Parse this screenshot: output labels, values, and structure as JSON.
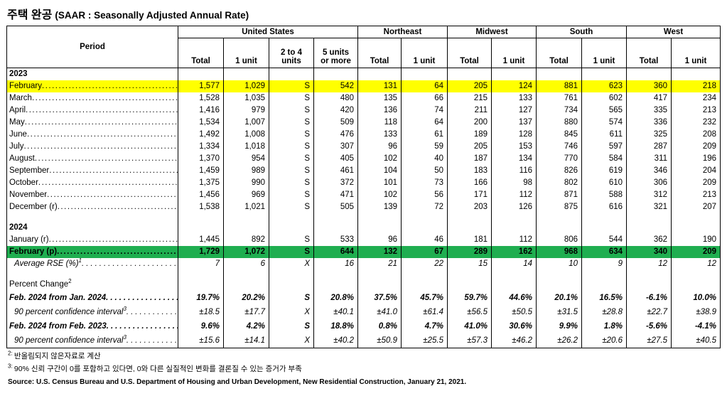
{
  "title": {
    "korean": "주택 완공",
    "english": "(SAAR : Seasonally Adjusted Annual Rate)"
  },
  "table": {
    "period_header": "Period",
    "groups": [
      {
        "label": "United States",
        "sub": [
          "Total",
          "1 unit",
          "2 to 4\nunits",
          "5 units\nor more"
        ]
      },
      {
        "label": "Northeast",
        "sub": [
          "Total",
          "1 unit"
        ]
      },
      {
        "label": "Midwest",
        "sub": [
          "Total",
          "1 unit"
        ]
      },
      {
        "label": "South",
        "sub": [
          "Total",
          "1 unit"
        ]
      },
      {
        "label": "West",
        "sub": [
          "Total",
          "1 unit"
        ]
      }
    ],
    "highlight_colors": {
      "yellow": "#FFFF00",
      "green": "#1FAE50"
    },
    "rows": [
      {
        "type": "year",
        "label": "2023"
      },
      {
        "type": "data",
        "label": "February",
        "dots": true,
        "highlight": "yellow",
        "values": [
          "1,577",
          "1,029",
          "S",
          "542",
          "131",
          "64",
          "205",
          "124",
          "881",
          "623",
          "360",
          "218"
        ]
      },
      {
        "type": "data",
        "label": "March",
        "dots": true,
        "values": [
          "1,528",
          "1,035",
          "S",
          "480",
          "135",
          "66",
          "215",
          "133",
          "761",
          "602",
          "417",
          "234"
        ]
      },
      {
        "type": "data",
        "label": "April",
        "dots": true,
        "values": [
          "1,416",
          "979",
          "S",
          "420",
          "136",
          "74",
          "211",
          "127",
          "734",
          "565",
          "335",
          "213"
        ]
      },
      {
        "type": "data",
        "label": "May",
        "dots": true,
        "values": [
          "1,534",
          "1,007",
          "S",
          "509",
          "118",
          "64",
          "200",
          "137",
          "880",
          "574",
          "336",
          "232"
        ]
      },
      {
        "type": "data",
        "label": "June",
        "dots": true,
        "values": [
          "1,492",
          "1,008",
          "S",
          "476",
          "133",
          "61",
          "189",
          "128",
          "845",
          "611",
          "325",
          "208"
        ]
      },
      {
        "type": "data",
        "label": "July",
        "dots": true,
        "values": [
          "1,334",
          "1,018",
          "S",
          "307",
          "96",
          "59",
          "205",
          "153",
          "746",
          "597",
          "287",
          "209"
        ]
      },
      {
        "type": "data",
        "label": "August",
        "dots": true,
        "values": [
          "1,370",
          "954",
          "S",
          "405",
          "102",
          "40",
          "187",
          "134",
          "770",
          "584",
          "311",
          "196"
        ]
      },
      {
        "type": "data",
        "label": "September",
        "dots": true,
        "values": [
          "1,459",
          "989",
          "S",
          "461",
          "104",
          "50",
          "183",
          "116",
          "826",
          "619",
          "346",
          "204"
        ]
      },
      {
        "type": "data",
        "label": "October",
        "dots": true,
        "values": [
          "1,375",
          "990",
          "S",
          "372",
          "101",
          "73",
          "166",
          "98",
          "802",
          "610",
          "306",
          "209"
        ]
      },
      {
        "type": "data",
        "label": "November",
        "dots": true,
        "values": [
          "1,456",
          "969",
          "S",
          "471",
          "102",
          "56",
          "171",
          "112",
          "871",
          "588",
          "312",
          "213"
        ]
      },
      {
        "type": "data",
        "label": "December (r)",
        "dots": true,
        "values": [
          "1,538",
          "1,021",
          "S",
          "505",
          "139",
          "72",
          "203",
          "126",
          "875",
          "616",
          "321",
          "207"
        ]
      },
      {
        "type": "blank"
      },
      {
        "type": "year",
        "label": "2024"
      },
      {
        "type": "data",
        "label": "January (r)",
        "dots": true,
        "values": [
          "1,445",
          "892",
          "S",
          "533",
          "96",
          "46",
          "181",
          "112",
          "806",
          "544",
          "362",
          "190"
        ]
      },
      {
        "type": "data",
        "label": "February (p)",
        "dots": true,
        "style": "bold",
        "highlight": "green",
        "values": [
          "1,729",
          "1,072",
          "S",
          "644",
          "132",
          "67",
          "289",
          "162",
          "968",
          "634",
          "340",
          "209"
        ]
      },
      {
        "type": "data",
        "label": "Average RSE (%)",
        "sup": "1",
        "dots": true,
        "style": "italic",
        "indent": true,
        "values": [
          "7",
          "6",
          "X",
          "16",
          "21",
          "22",
          "15",
          "14",
          "10",
          "9",
          "12",
          "12"
        ]
      },
      {
        "type": "blank"
      },
      {
        "type": "section",
        "label": "Percent Change",
        "sup": "2"
      },
      {
        "type": "pct",
        "label": "Feb. 2024 from Jan. 2024",
        "dots": true,
        "style": "bolditalic",
        "values": [
          "19.7%",
          "20.2%",
          "S",
          "20.8%",
          "37.5%",
          "45.7%",
          "59.7%",
          "44.6%",
          "20.1%",
          "16.5%",
          "-6.1%",
          "10.0%"
        ]
      },
      {
        "type": "pct",
        "label": "90 percent confidence interval",
        "sup": "3",
        "dots": true,
        "style": "italic",
        "indent": true,
        "values": [
          "±18.5",
          "±17.7",
          "X",
          "±40.1",
          "±41.0",
          "±61.4",
          "±56.5",
          "±50.5",
          "±31.5",
          "±28.8",
          "±22.7",
          "±38.9"
        ]
      },
      {
        "type": "pct",
        "label": "Feb. 2024 from Feb. 2023",
        "dots": true,
        "style": "bolditalic",
        "values": [
          "9.6%",
          "4.2%",
          "S",
          "18.8%",
          "0.8%",
          "4.7%",
          "41.0%",
          "30.6%",
          "9.9%",
          "1.8%",
          "-5.6%",
          "-4.1%"
        ]
      },
      {
        "type": "pct",
        "label": "90 percent confidence interval",
        "sup": "3",
        "dots": true,
        "style": "italic",
        "indent": true,
        "values": [
          "±15.6",
          "±14.1",
          "X",
          "±40.2",
          "±50.9",
          "±25.5",
          "±57.3",
          "±46.2",
          "±26.2",
          "±20.6",
          "±27.5",
          "±40.5"
        ]
      }
    ]
  },
  "footnotes": [
    {
      "marker": "2:",
      "text": "반올림되지 않은자료로 계산"
    },
    {
      "marker": "3:",
      "text": "90% 신뢰 구간이 0를 포함하고 있다면, 0와 다른 실질적인 변화를 결론질 수 있는 증거가 부족"
    }
  ],
  "source": "Source: U.S. Census Bureau and U.S. Department of Housing and Urban Development, New Residential Construction, January 21, 2021."
}
